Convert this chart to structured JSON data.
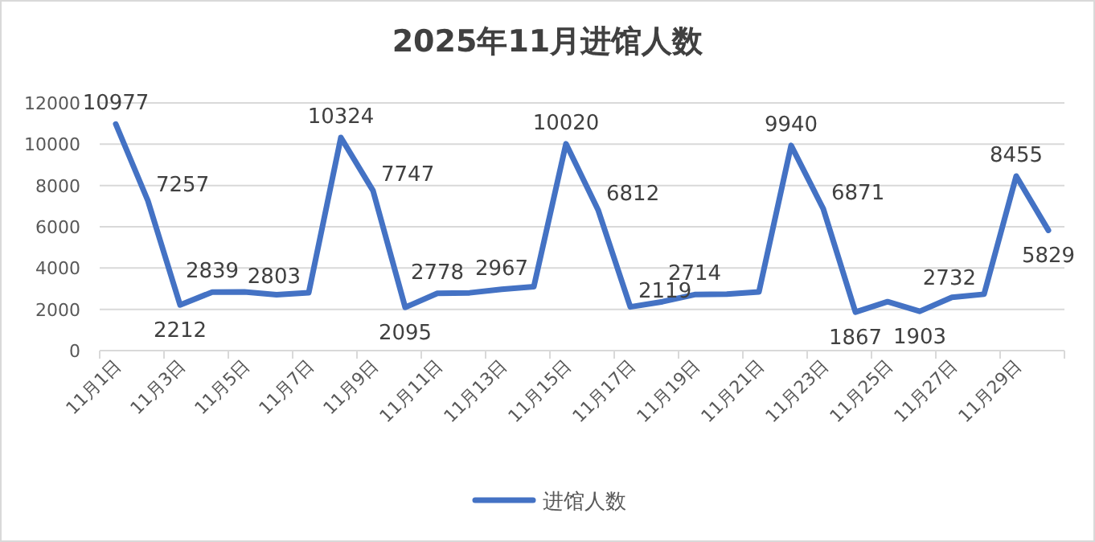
{
  "chart_data": {
    "type": "line",
    "title": "2025年11月进馆人数",
    "categories": [
      "11月1日",
      null,
      "11月3日",
      null,
      "11月5日",
      null,
      "11月7日",
      null,
      "11月9日",
      null,
      "11月11日",
      null,
      "11月13日",
      null,
      "11月15日",
      null,
      "11月17日",
      null,
      "11月19日",
      null,
      "11月21日",
      null,
      "11月23日",
      null,
      "11月25日",
      null,
      "11月27日",
      null,
      "11月29日",
      null
    ],
    "series": [
      {
        "name": "进馆人数",
        "color": "#4472c4",
        "values": [
          10977,
          7257,
          2212,
          2839,
          2840,
          2710,
          2803,
          10324,
          7747,
          2095,
          2778,
          2800,
          2967,
          3100,
          10020,
          6812,
          2119,
          2370,
          2714,
          2740,
          2840,
          9940,
          6871,
          1867,
          2370,
          1903,
          2580,
          2732,
          8455,
          5829
        ],
        "value_labels": [
          "10977",
          "7257",
          "2212",
          "2839",
          null,
          null,
          "2803",
          "10324",
          "7747",
          "2095",
          "2778",
          null,
          "2967",
          null,
          "10020",
          "6812",
          "2119",
          null,
          "2714",
          null,
          null,
          "9940",
          "6871",
          "1867",
          null,
          "1903",
          null,
          "2732",
          "8455",
          "5829"
        ]
      }
    ],
    "ylim": [
      0,
      12000
    ],
    "yticks": [
      0,
      2000,
      4000,
      6000,
      8000,
      10000,
      12000
    ],
    "grid": "y",
    "legend": "bottom"
  }
}
